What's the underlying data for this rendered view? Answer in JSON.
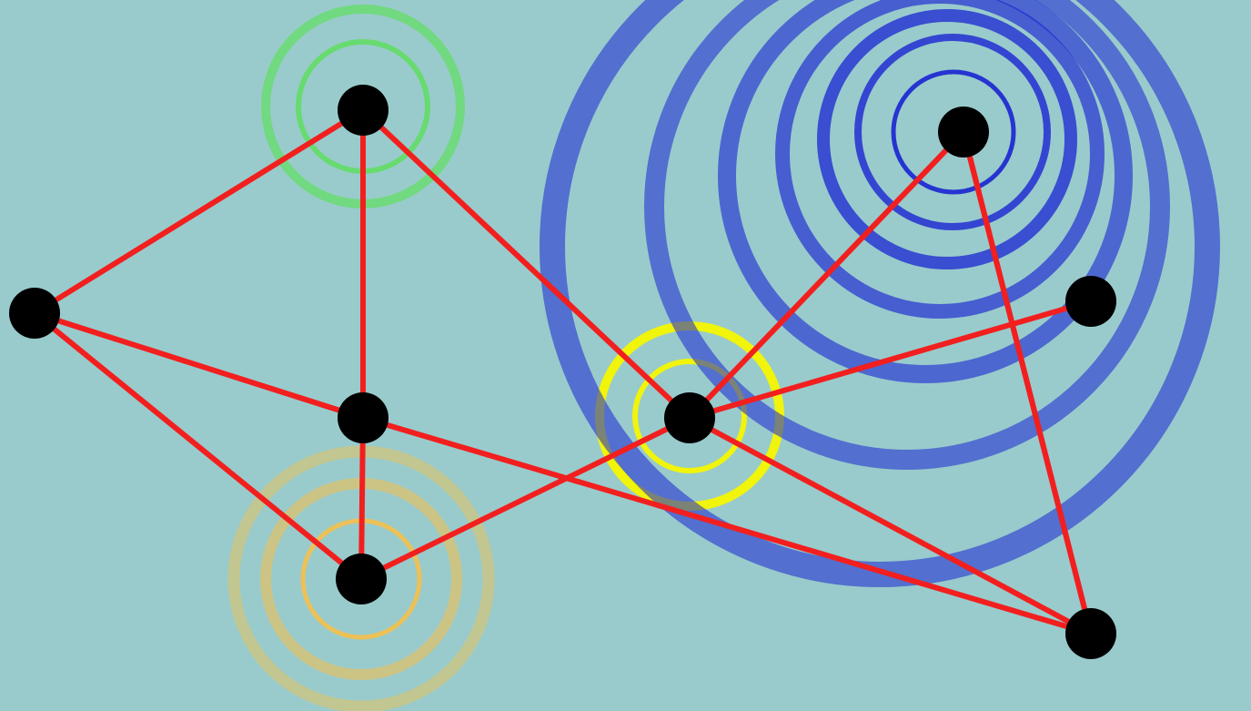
{
  "colors": {
    "background": "#99cbcc",
    "edge": "#f21f1f",
    "node": "#000000"
  },
  "graph": {
    "nodes": [
      "n1",
      "n2",
      "n3",
      "n4",
      "n5",
      "n6",
      "n7",
      "n8",
      "n9"
    ],
    "edges": [
      [
        "n1",
        "n2"
      ],
      [
        "n1",
        "n3"
      ],
      [
        "n1",
        "n5"
      ],
      [
        "n2",
        "n3"
      ],
      [
        "n2",
        "n4"
      ],
      [
        "n3",
        "n4"
      ],
      [
        "n3",
        "n9"
      ],
      [
        "n4",
        "n5"
      ],
      [
        "n5",
        "n6"
      ],
      [
        "n5",
        "n7"
      ],
      [
        "n5",
        "n9"
      ],
      [
        "n6",
        "n8"
      ],
      [
        "n6",
        "n9"
      ],
      [
        "n8",
        "n9"
      ]
    ]
  },
  "ripples": [
    {
      "node": "n1",
      "color": "#5fde5f",
      "label": "green"
    },
    {
      "node": "n4",
      "color": "#f5c04a",
      "label": "orange"
    },
    {
      "node": "n5",
      "color": "#f5f500",
      "label": "yellow"
    },
    {
      "node": "n6",
      "color": "#1a24d2",
      "label": "blue"
    }
  ]
}
